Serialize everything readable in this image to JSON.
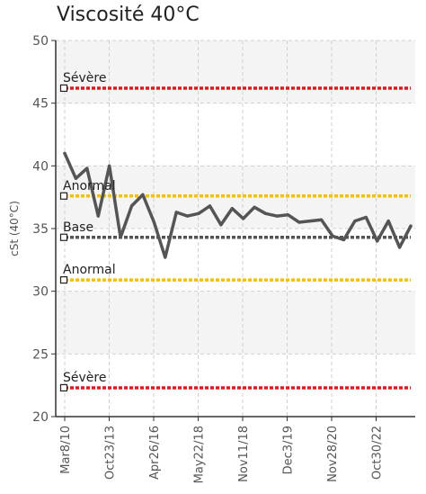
{
  "chart_data": {
    "type": "line",
    "title": "Viscosité 40°C",
    "ylabel": "cSt (40°C)",
    "xlabel": "",
    "ylim": [
      20,
      50
    ],
    "yticks": [
      20,
      25,
      30,
      35,
      40,
      45,
      50
    ],
    "xtick_labels": [
      "Mar8/10",
      "Oct23/13",
      "Apr26/16",
      "May22/18",
      "Nov11/18",
      "Dec3/19",
      "Nov28/20",
      "Oct30/22"
    ],
    "grid": true,
    "reference_lines": [
      {
        "label": "Sévère",
        "value": 46.2,
        "color": "#e8141e"
      },
      {
        "label": "Anormal",
        "value": 37.6,
        "color": "#f2c200"
      },
      {
        "label": "Base",
        "value": 34.3,
        "color": "#555555"
      },
      {
        "label": "Anormal",
        "value": 30.9,
        "color": "#f2c200"
      },
      {
        "label": "Sévère",
        "value": 22.3,
        "color": "#e8141e"
      }
    ],
    "series": [
      {
        "color": "#555555",
        "values": [
          41.0,
          39.0,
          39.8,
          36.0,
          40.0,
          34.3,
          36.8,
          37.7,
          35.5,
          32.7,
          36.3,
          36.0,
          36.2,
          36.8,
          35.3,
          36.6,
          35.8,
          36.7,
          36.2,
          36.0,
          36.1,
          35.5,
          35.6,
          35.7,
          34.4,
          34.1,
          35.6,
          35.9,
          34.0,
          35.6,
          33.5,
          35.2
        ]
      }
    ]
  }
}
